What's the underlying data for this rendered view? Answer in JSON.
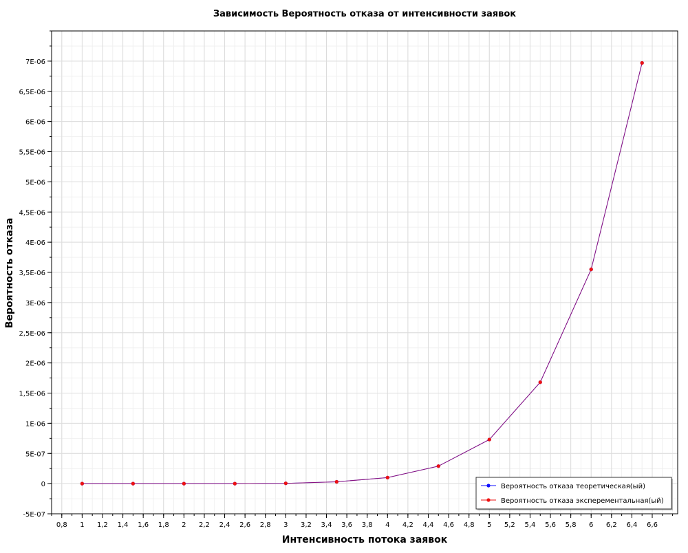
{
  "chart_data": {
    "type": "line",
    "title": "Зависимость Вероятность отказа от интенсивности заявок",
    "xlabel": "Интенсивность потока заявок",
    "ylabel": "Вероятность отказа",
    "xlim": [
      0.7,
      6.85
    ],
    "ylim": [
      -5e-07,
      7.5e-06
    ],
    "x_ticks": [
      0.8,
      1,
      1.2,
      1.4,
      1.6,
      1.8,
      2,
      2.2,
      2.4,
      2.6,
      2.8,
      3,
      3.2,
      3.4,
      3.6,
      3.8,
      4,
      4.2,
      4.4,
      4.6,
      4.8,
      5,
      5.2,
      5.4,
      5.6,
      5.8,
      6,
      6.2,
      6.4,
      6.6
    ],
    "x_tick_labels": [
      "0,8",
      "1",
      "1,2",
      "1,4",
      "1,6",
      "1,8",
      "2",
      "2,2",
      "2,4",
      "2,6",
      "2,8",
      "3",
      "3,2",
      "3,4",
      "3,6",
      "3,8",
      "4",
      "4,2",
      "4,4",
      "4,6",
      "4,8",
      "5",
      "5,2",
      "5,4",
      "5,6",
      "5,8",
      "6",
      "6,2",
      "6,4",
      "6,6"
    ],
    "y_ticks": [
      -5e-07,
      0,
      5e-07,
      1e-06,
      1.5e-06,
      2e-06,
      2.5e-06,
      3e-06,
      3.5e-06,
      4e-06,
      4.5e-06,
      5e-06,
      5.5e-06,
      6e-06,
      6.5e-06,
      7e-06
    ],
    "y_tick_labels": [
      "-5E-07",
      "0",
      "5E-07",
      "1E-06",
      "1,5E-06",
      "2E-06",
      "2,5E-06",
      "3E-06",
      "3,5E-06",
      "4E-06",
      "4,5E-06",
      "5E-06",
      "5,5E-06",
      "6E-06",
      "6,5E-06",
      "7E-06"
    ],
    "grid": true,
    "legend_position": "bottom-right",
    "series": [
      {
        "name": "Вероятность отказа теоретическая(ый)",
        "color": "#1010ff",
        "x": [
          1,
          1.5,
          2,
          2.5,
          3,
          3.5,
          4,
          4.5,
          5,
          5.5,
          6,
          6.5
        ],
        "y": [
          0,
          0,
          0,
          0,
          5e-09,
          3e-08,
          1e-07,
          2.9e-07,
          7.3e-07,
          1.68e-06,
          3.55e-06,
          6.97e-06
        ]
      },
      {
        "name": "Вероятность отказа эксперементальная(ый)",
        "color": "#ee1111",
        "x": [
          1,
          1.5,
          2,
          2.5,
          3,
          3.5,
          4,
          4.5,
          5,
          5.5,
          6,
          6.5
        ],
        "y": [
          0,
          0,
          0,
          0,
          5e-09,
          3e-08,
          1e-07,
          2.9e-07,
          7.3e-07,
          1.68e-06,
          3.55e-06,
          6.97e-06
        ]
      }
    ]
  }
}
